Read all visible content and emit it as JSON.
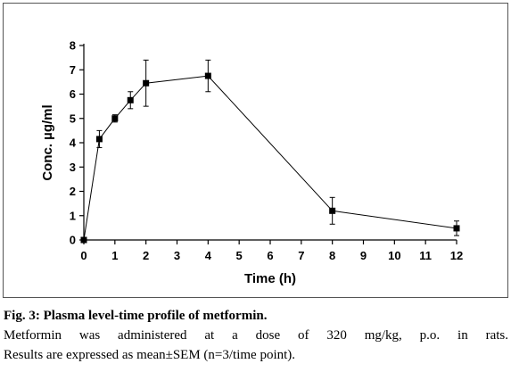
{
  "chart_data": {
    "type": "line",
    "title": "",
    "xlabel": "Time (h)",
    "ylabel": "Conc. µg/ml",
    "xlim": [
      0,
      12
    ],
    "ylim": [
      0,
      8
    ],
    "xticks": [
      "0",
      "1",
      "2",
      "3",
      "4",
      "5",
      "6",
      "7",
      "8",
      "9",
      "10",
      "11",
      "12"
    ],
    "yticks": [
      "0",
      "1",
      "2",
      "3",
      "4",
      "5",
      "6",
      "7",
      "8"
    ],
    "grid": false,
    "legend": "none",
    "series": [
      {
        "x": [
          0,
          0.5,
          1,
          1.5,
          2,
          4,
          8,
          12
        ],
        "y": [
          0,
          4.15,
          5.0,
          5.75,
          6.45,
          6.75,
          1.2,
          0.48
        ],
        "sem": [
          0,
          0.35,
          0.15,
          0.35,
          0.95,
          0.65,
          0.55,
          0.3
        ]
      }
    ],
    "line_color": "#000000",
    "marker": "square"
  },
  "caption": {
    "fig_number": "Fig. 3:",
    "fig_title": "Plasma level-time profile of metformin.",
    "line2": "Metformin was administered at a dose of 320 mg/kg, p.o. in rats.",
    "line3": "Results are expressed as mean±SEM (n=3/time point)."
  }
}
